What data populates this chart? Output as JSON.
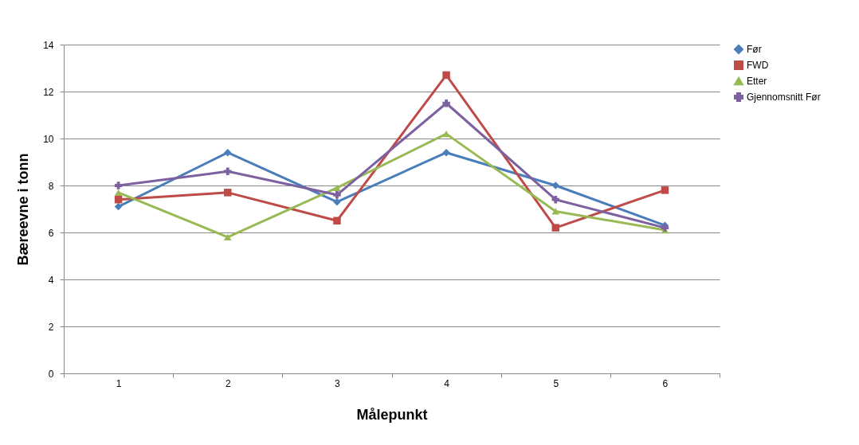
{
  "chart_data": {
    "type": "line",
    "xlabel": "Målepunkt",
    "ylabel": "Bæreevne i tonn",
    "categories": [
      "1",
      "2",
      "3",
      "4",
      "5",
      "6"
    ],
    "series": [
      {
        "name": "Før",
        "color": "#4a7ebb",
        "marker": "diamond",
        "values": [
          7.1,
          9.4,
          7.3,
          9.4,
          8.0,
          6.3
        ]
      },
      {
        "name": "FWD",
        "color": "#be4b48",
        "marker": "square",
        "values": [
          7.4,
          7.7,
          6.5,
          12.7,
          6.2,
          7.8
        ]
      },
      {
        "name": "Etter",
        "color": "#98b954",
        "marker": "triangle",
        "values": [
          7.7,
          5.8,
          7.9,
          10.2,
          6.9,
          6.1
        ]
      },
      {
        "name": "Gjennomsnitt Før",
        "color": "#7d60a0",
        "marker": "cross",
        "values": [
          8.0,
          8.6,
          7.6,
          11.5,
          7.4,
          6.2
        ]
      }
    ],
    "ylim": [
      0,
      14
    ],
    "yticks": [
      0,
      2,
      4,
      6,
      8,
      10,
      12,
      14
    ],
    "grid": "y",
    "legend": "right",
    "line_style": "solid"
  }
}
